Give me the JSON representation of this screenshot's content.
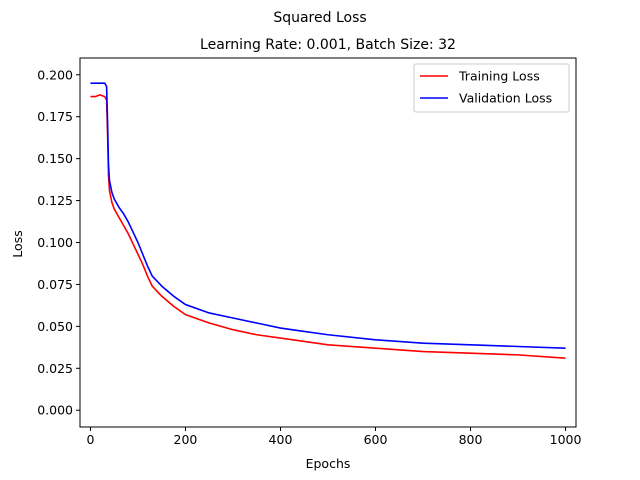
{
  "chart_data": {
    "type": "line",
    "suptitle": "Squared Loss",
    "title": "Learning Rate: 0.001, Batch Size: 32",
    "xlabel": "Epochs",
    "ylabel": "Loss",
    "xlim": [
      -22,
      1022
    ],
    "ylim": [
      -0.01,
      0.21
    ],
    "xticks": [
      0,
      200,
      400,
      600,
      800,
      1000
    ],
    "xtick_labels": [
      "0",
      "200",
      "400",
      "600",
      "800",
      "1000"
    ],
    "yticks": [
      0.0,
      0.025,
      0.05,
      0.075,
      0.1,
      0.125,
      0.15,
      0.175,
      0.2
    ],
    "ytick_labels": [
      "0.000",
      "0.025",
      "0.050",
      "0.075",
      "0.100",
      "0.125",
      "0.150",
      "0.175",
      "0.200"
    ],
    "grid": false,
    "legend_position": "top-right",
    "series": [
      {
        "name": "Training Loss",
        "color": "#ff0000",
        "x": [
          0,
          10,
          20,
          30,
          34,
          36,
          38,
          40,
          45,
          50,
          60,
          70,
          80,
          90,
          100,
          110,
          120,
          130,
          140,
          150,
          175,
          200,
          250,
          300,
          350,
          400,
          450,
          500,
          600,
          700,
          800,
          900,
          1000
        ],
        "y": [
          0.187,
          0.187,
          0.188,
          0.187,
          0.185,
          0.165,
          0.14,
          0.131,
          0.124,
          0.12,
          0.115,
          0.11,
          0.105,
          0.099,
          0.093,
          0.087,
          0.08,
          0.074,
          0.071,
          0.068,
          0.062,
          0.057,
          0.052,
          0.048,
          0.045,
          0.043,
          0.041,
          0.039,
          0.037,
          0.035,
          0.034,
          0.033,
          0.031
        ]
      },
      {
        "name": "Validation Loss",
        "color": "#0000ff",
        "x": [
          0,
          10,
          20,
          30,
          34,
          36,
          38,
          40,
          45,
          50,
          60,
          70,
          80,
          90,
          100,
          110,
          120,
          130,
          140,
          150,
          175,
          200,
          250,
          300,
          350,
          400,
          450,
          500,
          600,
          700,
          800,
          900,
          1000
        ],
        "y": [
          0.195,
          0.195,
          0.195,
          0.195,
          0.193,
          0.172,
          0.146,
          0.137,
          0.13,
          0.126,
          0.121,
          0.117,
          0.112,
          0.106,
          0.1,
          0.093,
          0.086,
          0.08,
          0.077,
          0.074,
          0.068,
          0.063,
          0.058,
          0.055,
          0.052,
          0.049,
          0.047,
          0.045,
          0.042,
          0.04,
          0.039,
          0.038,
          0.037
        ]
      }
    ]
  }
}
